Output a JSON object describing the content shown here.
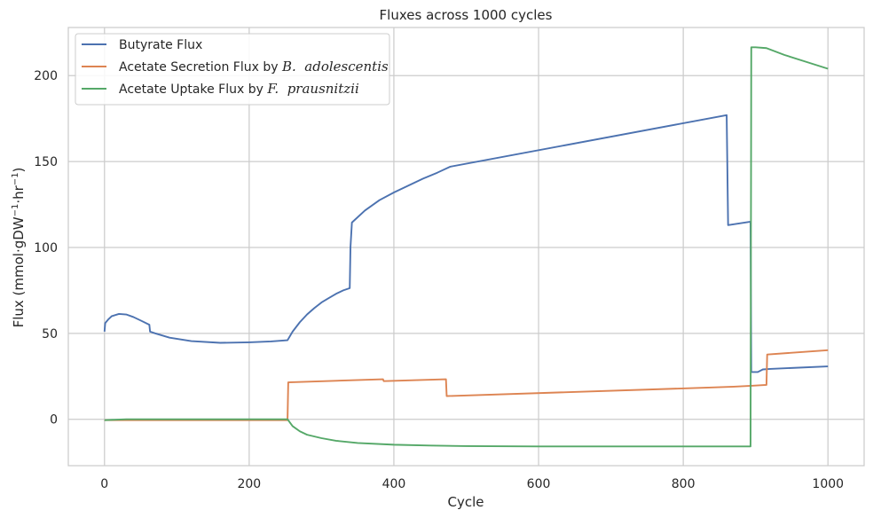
{
  "chart_data": {
    "type": "line",
    "title": "Fluxes across 1000 cycles",
    "xlabel": "Cycle",
    "ylabel": {
      "text": "Flux (mmol·gDW",
      "sup1": "−1",
      "mid": "·hr",
      "sup2": "−1",
      "end": ")"
    },
    "xlim": [
      -50,
      1050
    ],
    "ylim": [
      -27,
      228
    ],
    "xticks": [
      0,
      200,
      400,
      600,
      800,
      1000
    ],
    "yticks": [
      0,
      50,
      100,
      150,
      200
    ],
    "grid": true,
    "legend_position": "top-left",
    "series": [
      {
        "name": "Butyrate Flux",
        "legend": {
          "text": "Butyrate Flux",
          "emph": ""
        },
        "color": "#4c72b0",
        "points": [
          [
            0,
            51
          ],
          [
            1,
            56
          ],
          [
            5,
            58
          ],
          [
            10,
            60
          ],
          [
            20,
            61.3
          ],
          [
            30,
            61
          ],
          [
            40,
            59.5
          ],
          [
            50,
            57.5
          ],
          [
            62,
            55
          ],
          [
            63,
            51
          ],
          [
            70,
            50
          ],
          [
            90,
            47.5
          ],
          [
            120,
            45.5
          ],
          [
            160,
            44.5
          ],
          [
            200,
            44.8
          ],
          [
            230,
            45.3
          ],
          [
            253,
            46
          ],
          [
            260,
            51
          ],
          [
            270,
            56.5
          ],
          [
            280,
            61
          ],
          [
            290,
            64.7
          ],
          [
            300,
            68
          ],
          [
            310,
            70.5
          ],
          [
            320,
            73
          ],
          [
            330,
            75
          ],
          [
            339,
            76.3
          ],
          [
            340,
            100
          ],
          [
            342,
            114.5
          ],
          [
            360,
            121.5
          ],
          [
            380,
            127.5
          ],
          [
            400,
            132
          ],
          [
            420,
            136
          ],
          [
            440,
            140
          ],
          [
            460,
            143.5
          ],
          [
            478,
            147
          ],
          [
            860,
            177
          ],
          [
            862,
            113
          ],
          [
            893,
            115
          ],
          [
            894,
            27.5
          ],
          [
            903,
            27.5
          ],
          [
            910,
            29
          ],
          [
            920,
            29.3
          ],
          [
            1000,
            30.8
          ]
        ]
      },
      {
        "name": "Acetate Secretion Flux by B. adolescentis",
        "legend": {
          "text": "Acetate Secretion Flux by ",
          "emph": "B.  adolescentis"
        },
        "color": "#dd8452",
        "points": [
          [
            0,
            -0.5
          ],
          [
            253,
            -0.5
          ],
          [
            254,
            21.5
          ],
          [
            385,
            23.3
          ],
          [
            386,
            22.2
          ],
          [
            472,
            23.3
          ],
          [
            473,
            13.5
          ],
          [
            840,
            18.5
          ],
          [
            870,
            19
          ],
          [
            894,
            19.5
          ],
          [
            915,
            20
          ],
          [
            916,
            37.7
          ],
          [
            1000,
            40.2
          ]
        ]
      },
      {
        "name": "Acetate Uptake Flux by F. prausnitzii",
        "legend": {
          "text": "Acetate Uptake Flux by ",
          "emph": "F.  prausnitzii"
        },
        "color": "#55a868",
        "points": [
          [
            0,
            -0.5
          ],
          [
            30,
            0
          ],
          [
            253,
            0
          ],
          [
            260,
            -4
          ],
          [
            270,
            -7
          ],
          [
            280,
            -9
          ],
          [
            300,
            -11
          ],
          [
            320,
            -12.5
          ],
          [
            350,
            -13.8
          ],
          [
            400,
            -14.8
          ],
          [
            450,
            -15.3
          ],
          [
            500,
            -15.6
          ],
          [
            600,
            -15.8
          ],
          [
            700,
            -15.8
          ],
          [
            800,
            -15.8
          ],
          [
            893,
            -15.8
          ],
          [
            894,
            216.5
          ],
          [
            900,
            216.5
          ],
          [
            915,
            216
          ],
          [
            940,
            212
          ],
          [
            970,
            208
          ],
          [
            1000,
            204
          ]
        ]
      }
    ]
  }
}
